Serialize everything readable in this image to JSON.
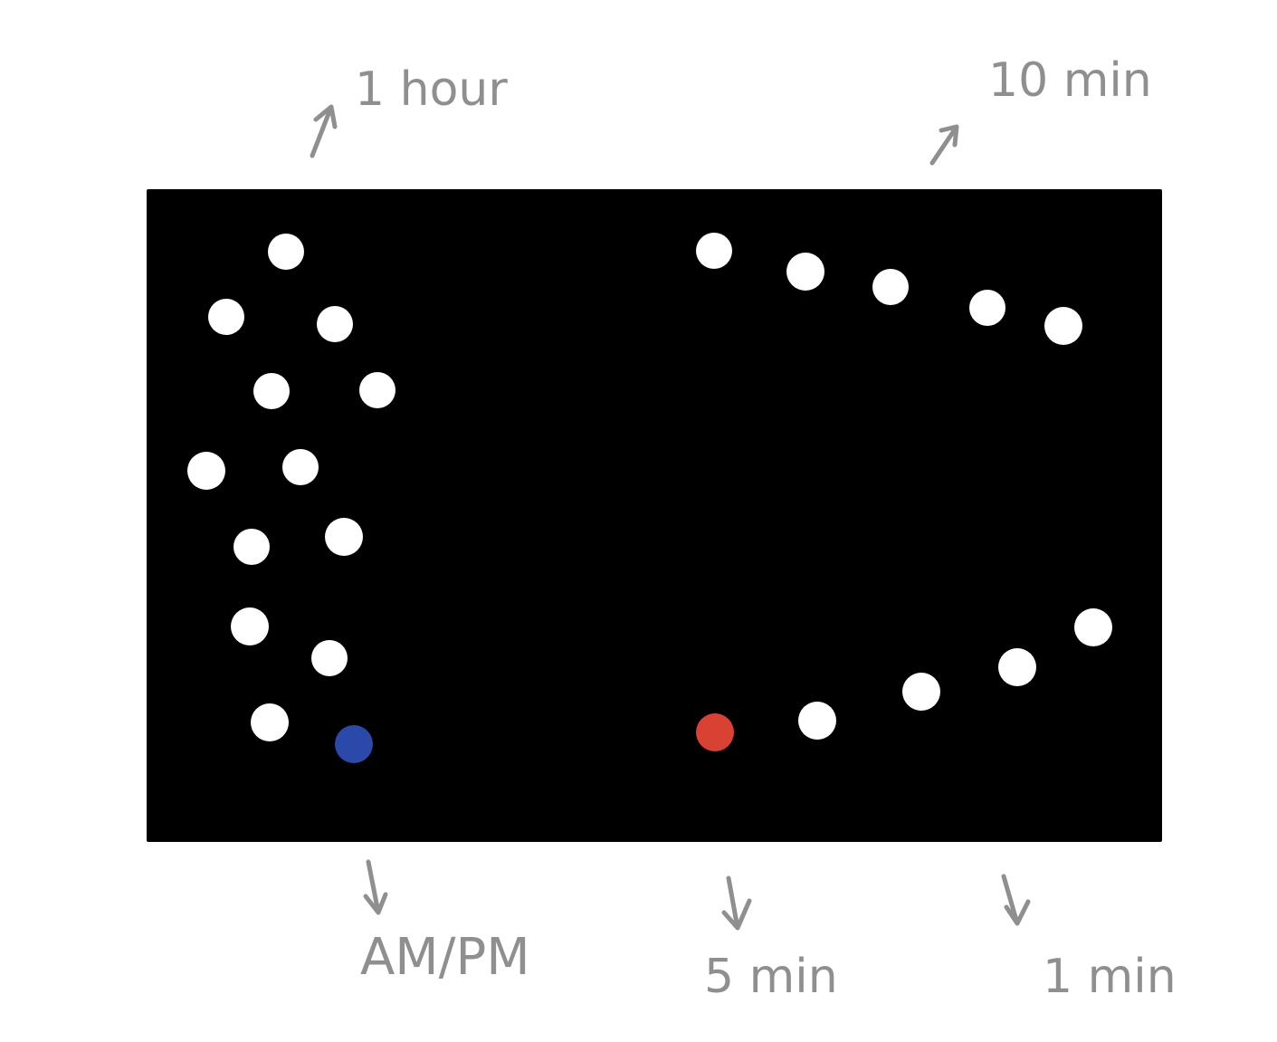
{
  "labels": {
    "one_hour": "1 hour",
    "ten_min": "10 min",
    "am_pm": "AM/PM",
    "five_min": "5 min",
    "one_min": "1 min"
  },
  "colors": {
    "panel": "#000000",
    "dot": "#ffffff",
    "am_pm_dot": "#2a49a8",
    "five_min_dot": "#d94133",
    "annotation": "#8f8f8f",
    "background": "#ffffff"
  }
}
